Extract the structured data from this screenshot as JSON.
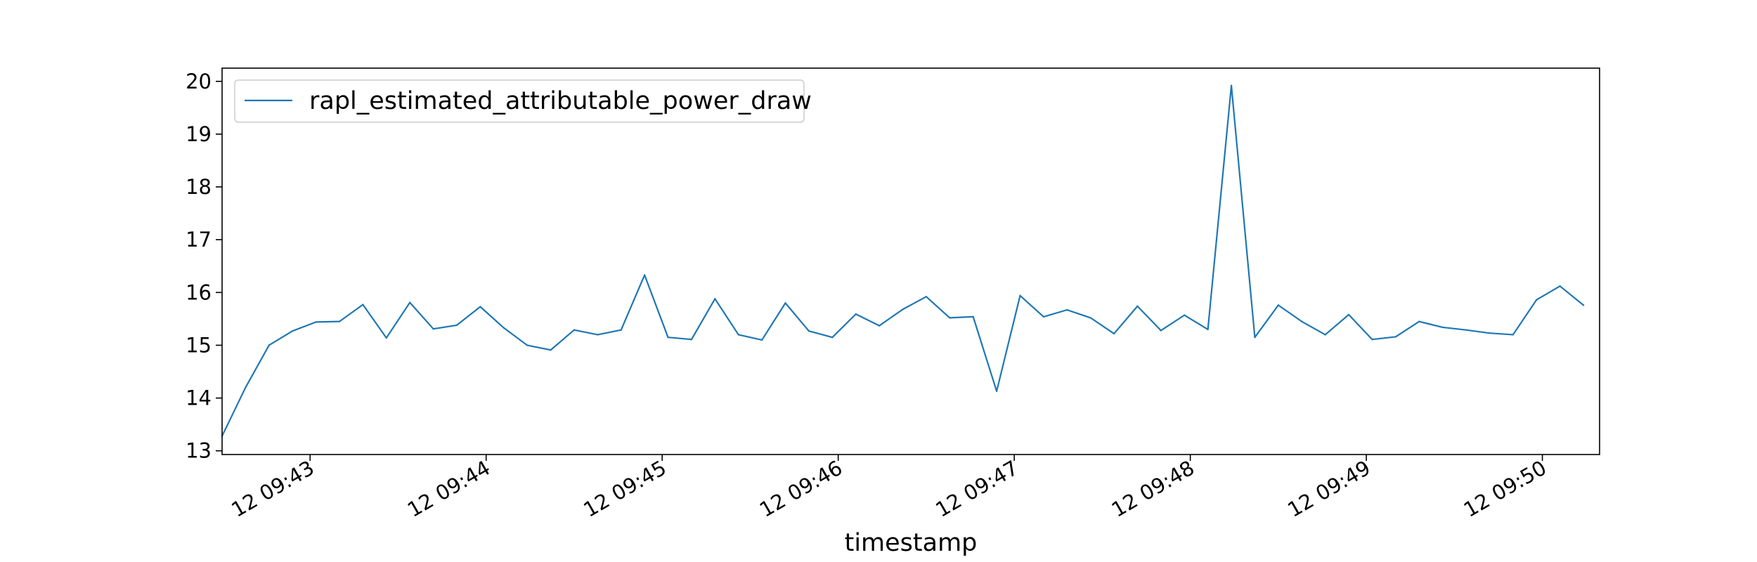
{
  "chart_data": {
    "type": "line",
    "title": "",
    "xlabel": "timestamp",
    "ylabel": "",
    "x_time_start": "12 09:42:30",
    "x_step_seconds": 8,
    "x_tick_values_seconds": [
      30,
      90,
      150,
      210,
      270,
      330,
      390,
      450
    ],
    "x_tick_labels": [
      "12 09:43",
      "12 09:44",
      "12 09:45",
      "12 09:46",
      "12 09:47",
      "12 09:48",
      "12 09:49",
      "12 09:50"
    ],
    "xlim": [
      "12 09:42:30",
      "12 09:50:19.5"
    ],
    "y_ticks": [
      13,
      14,
      15,
      16,
      17,
      18,
      19,
      20
    ],
    "y_tick_labels": [
      "13",
      "14",
      "15",
      "16",
      "17",
      "18",
      "19",
      "20"
    ],
    "ylim": [
      12.93,
      20.25
    ],
    "grid": false,
    "legend_position": "top-left",
    "series": [
      {
        "name": "rapl_estimated_attributable_power_draw",
        "color": "#1f77b4",
        "values": [
          13.28,
          14.2,
          15.0,
          15.27,
          15.44,
          15.45,
          15.77,
          15.14,
          15.81,
          15.31,
          15.38,
          15.73,
          15.33,
          15.0,
          14.91,
          15.29,
          15.2,
          15.29,
          16.33,
          15.15,
          15.11,
          15.88,
          15.2,
          15.1,
          15.8,
          15.27,
          15.15,
          15.59,
          15.37,
          15.68,
          15.92,
          15.52,
          15.54,
          14.13,
          15.94,
          15.54,
          15.67,
          15.52,
          15.22,
          15.74,
          15.28,
          15.57,
          15.3,
          19.92,
          15.15,
          15.76,
          15.45,
          15.2,
          15.58,
          15.11,
          15.16,
          15.45,
          15.34,
          15.29,
          15.23,
          15.2,
          15.86,
          16.12,
          15.76
        ]
      }
    ]
  }
}
